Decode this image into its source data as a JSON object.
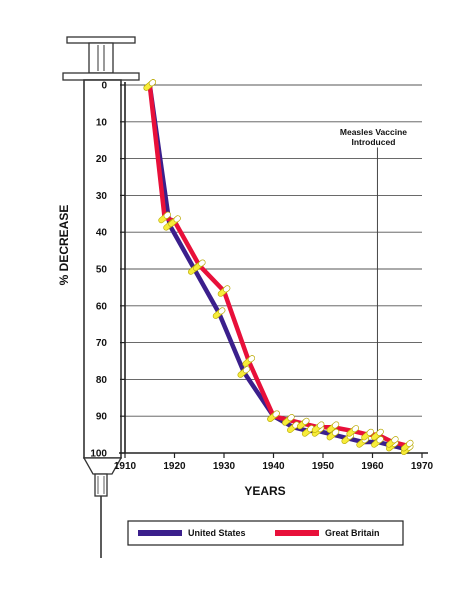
{
  "chart_data": {
    "type": "line",
    "xlabel": "YEARS",
    "ylabel": "% DECREASE",
    "xlim": [
      1910,
      1970
    ],
    "ylim": [
      0,
      100
    ],
    "y_inverted": true,
    "x_ticks": [
      1910,
      1920,
      1930,
      1940,
      1950,
      1960,
      1970
    ],
    "y_ticks": [
      0,
      10,
      20,
      30,
      40,
      50,
      60,
      70,
      80,
      90,
      100
    ],
    "x_tick_labels": [
      "1910",
      "1920",
      "1930",
      "1940",
      "1950",
      "1960",
      "1970"
    ],
    "y_tick_labels": [
      "0",
      "10",
      "20",
      "30",
      "40",
      "50",
      "60",
      "70",
      "80",
      "90",
      "100"
    ],
    "grid": "horizontal",
    "annotation": {
      "line1": "Measles Vaccine",
      "line2": "Introduced",
      "x": 1961
    },
    "legend_position": "bottom",
    "series": [
      {
        "name": "United States",
        "color": "#3b1f8c",
        "x": [
          1915,
          1919,
          1924,
          1929,
          1934,
          1940,
          1944,
          1947,
          1949,
          1952,
          1955,
          1958,
          1961,
          1964,
          1967
        ],
        "y": [
          0,
          38,
          50,
          62,
          78,
          90,
          93,
          94,
          94,
          95,
          96,
          97,
          97,
          98,
          99
        ]
      },
      {
        "name": "Great Britain",
        "color": "#e8103a",
        "x": [
          1915,
          1918,
          1920,
          1925,
          1930,
          1935,
          1940,
          1943,
          1946,
          1949,
          1952,
          1956,
          1959,
          1961,
          1964,
          1967
        ],
        "y": [
          0,
          36,
          37,
          49,
          56,
          75,
          90,
          91,
          92,
          93,
          93,
          94,
          95,
          95,
          97,
          98
        ]
      }
    ]
  },
  "icons": {
    "syringe": "syringe-icon",
    "capsule": "capsule-marker-icon"
  }
}
